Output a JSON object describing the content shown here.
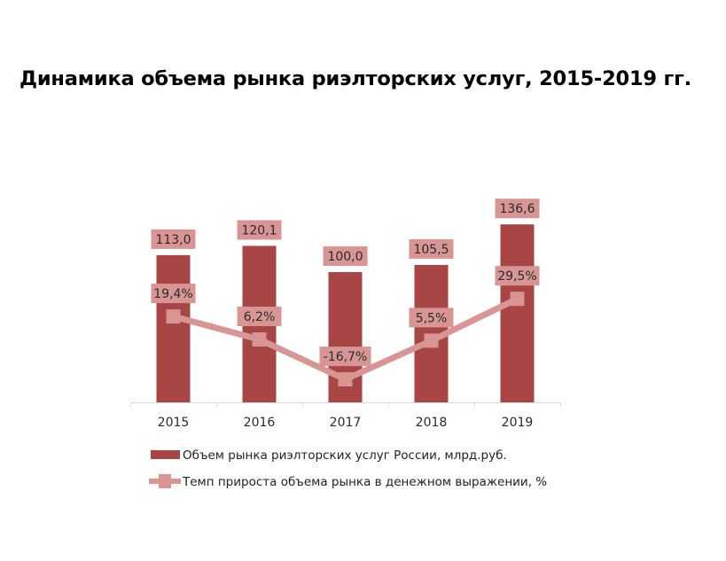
{
  "title": "Динамика объема рынка риэлторских услуг, 2015-2019 гг.",
  "colors": {
    "bar": "#a84545",
    "line": "#d99494",
    "label_bg": "#d99494",
    "axis": "#d9d9d9",
    "text": "#2b2b2b"
  },
  "chart_data": {
    "type": "bar+line",
    "title": "Динамика объема рынка риэлторских услуг, 2015-2019 гг.",
    "categories": [
      "2015",
      "2016",
      "2017",
      "2018",
      "2019"
    ],
    "series": [
      {
        "name": "Объем рынка риэлторских услуг России, млрд.руб.",
        "type": "bar",
        "values": [
          113.0,
          120.1,
          100.0,
          105.5,
          136.6
        ],
        "labels": [
          "113,0",
          "120,1",
          "100,0",
          "105,5",
          "136,6"
        ]
      },
      {
        "name": "Темп прироста объема рынка в денежном выражении, %",
        "type": "line",
        "values": [
          19.4,
          6.2,
          -16.7,
          5.5,
          29.5
        ],
        "labels": [
          "19,4%",
          "6,2%",
          "-16,7%",
          "5,5%",
          "29,5%"
        ]
      }
    ],
    "xlabel": "",
    "ylabel": "",
    "grid": false,
    "legend_position": "bottom"
  },
  "legend": {
    "bar_label": "Объем рынка риэлторских услуг России, млрд.руб.",
    "line_label": "Темп прироста объема рынка в денежном выражении, %"
  }
}
